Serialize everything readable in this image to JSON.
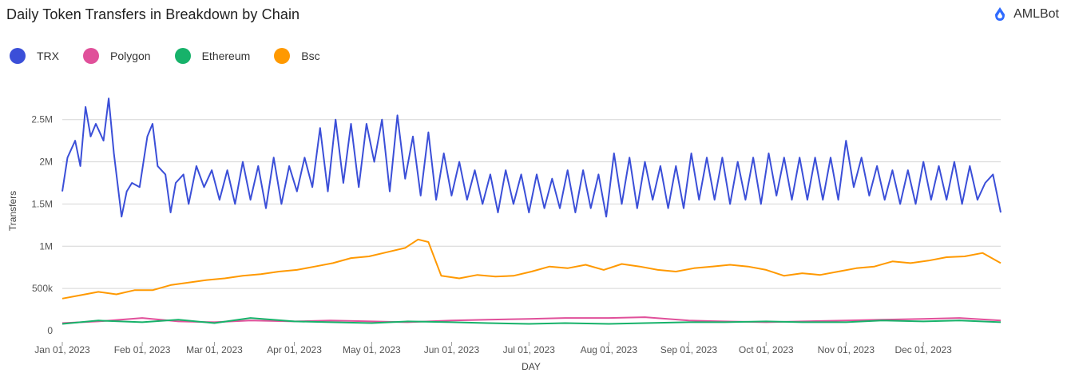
{
  "header": {
    "title": "Daily Token Transfers in Breakdown by Chain",
    "brand": "AMLBot",
    "brand_icon": "amlbot-logo-icon"
  },
  "colors": {
    "TRX": "#3b4fd8",
    "Polygon": "#e0509a",
    "Ethereum": "#17b26a",
    "Bsc": "#ff9900",
    "grid": "#d6d6d6"
  },
  "chart_data": {
    "type": "line",
    "title": "Daily Token Transfers in Breakdown by Chain",
    "xlabel": "DAY",
    "ylabel": "Transfers",
    "ylim": [
      0,
      2800000
    ],
    "yticks": [
      0,
      500000,
      1000000,
      1500000,
      2000000,
      2500000
    ],
    "ytick_labels": [
      "0",
      "500k",
      "1M",
      "1.5M",
      "2M",
      "2.5M"
    ],
    "xlim": [
      "2023-01-01",
      "2023-12-31"
    ],
    "xticks": [
      "2023-01-01",
      "2023-02-01",
      "2023-03-01",
      "2023-04-01",
      "2023-05-01",
      "2023-06-01",
      "2023-07-01",
      "2023-08-01",
      "2023-09-01",
      "2023-10-01",
      "2023-11-01",
      "2023-12-01"
    ],
    "xtick_labels": [
      "Jan 01, 2023",
      "Feb 01, 2023",
      "Mar 01, 2023",
      "Apr 01, 2023",
      "May 01, 2023",
      "Jun 01, 2023",
      "Jul 01, 2023",
      "Aug 01, 2023",
      "Sep 01, 2023",
      "Oct 01, 2023",
      "Nov 01, 2023",
      "Dec 01, 2023"
    ],
    "grid": true,
    "legend_position": "top-left",
    "series": [
      {
        "name": "TRX",
        "x": [
          "2023-01-01",
          "2023-01-03",
          "2023-01-06",
          "2023-01-08",
          "2023-01-10",
          "2023-01-12",
          "2023-01-14",
          "2023-01-17",
          "2023-01-19",
          "2023-01-21",
          "2023-01-24",
          "2023-01-26",
          "2023-01-28",
          "2023-01-31",
          "2023-02-03",
          "2023-02-05",
          "2023-02-07",
          "2023-02-10",
          "2023-02-12",
          "2023-02-14",
          "2023-02-17",
          "2023-02-19",
          "2023-02-22",
          "2023-02-25",
          "2023-02-28",
          "2023-03-03",
          "2023-03-06",
          "2023-03-09",
          "2023-03-12",
          "2023-03-15",
          "2023-03-18",
          "2023-03-21",
          "2023-03-24",
          "2023-03-27",
          "2023-03-30",
          "2023-04-02",
          "2023-04-05",
          "2023-04-08",
          "2023-04-11",
          "2023-04-14",
          "2023-04-17",
          "2023-04-20",
          "2023-04-23",
          "2023-04-26",
          "2023-04-29",
          "2023-05-02",
          "2023-05-05",
          "2023-05-08",
          "2023-05-11",
          "2023-05-14",
          "2023-05-17",
          "2023-05-20",
          "2023-05-23",
          "2023-05-26",
          "2023-05-29",
          "2023-06-01",
          "2023-06-04",
          "2023-06-07",
          "2023-06-10",
          "2023-06-13",
          "2023-06-16",
          "2023-06-19",
          "2023-06-22",
          "2023-06-25",
          "2023-06-28",
          "2023-07-01",
          "2023-07-04",
          "2023-07-07",
          "2023-07-10",
          "2023-07-13",
          "2023-07-16",
          "2023-07-19",
          "2023-07-22",
          "2023-07-25",
          "2023-07-28",
          "2023-07-31",
          "2023-08-03",
          "2023-08-06",
          "2023-08-09",
          "2023-08-12",
          "2023-08-15",
          "2023-08-18",
          "2023-08-21",
          "2023-08-24",
          "2023-08-27",
          "2023-08-30",
          "2023-09-02",
          "2023-09-05",
          "2023-09-08",
          "2023-09-11",
          "2023-09-14",
          "2023-09-17",
          "2023-09-20",
          "2023-09-23",
          "2023-09-26",
          "2023-09-29",
          "2023-10-02",
          "2023-10-05",
          "2023-10-08",
          "2023-10-11",
          "2023-10-14",
          "2023-10-17",
          "2023-10-20",
          "2023-10-23",
          "2023-10-26",
          "2023-10-29",
          "2023-11-01",
          "2023-11-04",
          "2023-11-07",
          "2023-11-10",
          "2023-11-13",
          "2023-11-16",
          "2023-11-19",
          "2023-11-22",
          "2023-11-25",
          "2023-11-28",
          "2023-12-01",
          "2023-12-04",
          "2023-12-07",
          "2023-12-10",
          "2023-12-13",
          "2023-12-16",
          "2023-12-19",
          "2023-12-22",
          "2023-12-25",
          "2023-12-28",
          "2023-12-31"
        ],
        "values": [
          1650000,
          2050000,
          2250000,
          1950000,
          2650000,
          2300000,
          2450000,
          2250000,
          2750000,
          2100000,
          1350000,
          1650000,
          1750000,
          1700000,
          2300000,
          2450000,
          1950000,
          1850000,
          1400000,
          1750000,
          1850000,
          1500000,
          1950000,
          1700000,
          1900000,
          1550000,
          1900000,
          1500000,
          2000000,
          1550000,
          1950000,
          1450000,
          2050000,
          1500000,
          1950000,
          1650000,
          2050000,
          1700000,
          2400000,
          1650000,
          2500000,
          1750000,
          2450000,
          1700000,
          2450000,
          2000000,
          2500000,
          1650000,
          2550000,
          1800000,
          2300000,
          1600000,
          2350000,
          1550000,
          2100000,
          1600000,
          2000000,
          1550000,
          1900000,
          1500000,
          1850000,
          1400000,
          1900000,
          1500000,
          1850000,
          1400000,
          1850000,
          1450000,
          1800000,
          1450000,
          1900000,
          1400000,
          1900000,
          1450000,
          1850000,
          1350000,
          2100000,
          1500000,
          2050000,
          1450000,
          2000000,
          1550000,
          1950000,
          1450000,
          1950000,
          1450000,
          2100000,
          1550000,
          2050000,
          1550000,
          2050000,
          1500000,
          2000000,
          1550000,
          2050000,
          1500000,
          2100000,
          1600000,
          2050000,
          1550000,
          2050000,
          1550000,
          2050000,
          1550000,
          2050000,
          1550000,
          2250000,
          1700000,
          2050000,
          1600000,
          1950000,
          1550000,
          1900000,
          1500000,
          1900000,
          1500000,
          2000000,
          1550000,
          1950000,
          1550000,
          2000000,
          1500000,
          1950000,
          1550000,
          1750000,
          1850000,
          1400000
        ]
      },
      {
        "name": "Polygon",
        "x": [
          "2023-01-01",
          "2023-01-15",
          "2023-02-01",
          "2023-02-15",
          "2023-03-01",
          "2023-03-15",
          "2023-04-01",
          "2023-04-15",
          "2023-05-01",
          "2023-05-15",
          "2023-06-01",
          "2023-06-15",
          "2023-07-01",
          "2023-07-15",
          "2023-08-01",
          "2023-08-15",
          "2023-09-01",
          "2023-09-15",
          "2023-10-01",
          "2023-10-15",
          "2023-11-01",
          "2023-11-15",
          "2023-12-01",
          "2023-12-15",
          "2023-12-31"
        ],
        "values": [
          90000,
          110000,
          150000,
          110000,
          100000,
          120000,
          110000,
          120000,
          110000,
          100000,
          120000,
          130000,
          140000,
          150000,
          150000,
          160000,
          120000,
          110000,
          100000,
          110000,
          120000,
          130000,
          140000,
          150000,
          120000
        ]
      },
      {
        "name": "Ethereum",
        "x": [
          "2023-01-01",
          "2023-01-15",
          "2023-02-01",
          "2023-02-15",
          "2023-03-01",
          "2023-03-15",
          "2023-04-01",
          "2023-04-15",
          "2023-05-01",
          "2023-05-15",
          "2023-06-01",
          "2023-06-15",
          "2023-07-01",
          "2023-07-15",
          "2023-08-01",
          "2023-08-15",
          "2023-09-01",
          "2023-09-15",
          "2023-10-01",
          "2023-10-15",
          "2023-11-01",
          "2023-11-15",
          "2023-12-01",
          "2023-12-15",
          "2023-12-31"
        ],
        "values": [
          80000,
          120000,
          100000,
          130000,
          90000,
          150000,
          110000,
          100000,
          90000,
          110000,
          100000,
          90000,
          80000,
          90000,
          80000,
          90000,
          100000,
          100000,
          110000,
          100000,
          100000,
          120000,
          110000,
          120000,
          100000
        ]
      },
      {
        "name": "Bsc",
        "x": [
          "2023-01-01",
          "2023-01-08",
          "2023-01-15",
          "2023-01-22",
          "2023-01-29",
          "2023-02-05",
          "2023-02-12",
          "2023-02-19",
          "2023-02-26",
          "2023-03-05",
          "2023-03-12",
          "2023-03-19",
          "2023-03-26",
          "2023-04-02",
          "2023-04-09",
          "2023-04-16",
          "2023-04-23",
          "2023-04-30",
          "2023-05-07",
          "2023-05-14",
          "2023-05-19",
          "2023-05-23",
          "2023-05-28",
          "2023-06-04",
          "2023-06-11",
          "2023-06-18",
          "2023-06-25",
          "2023-07-02",
          "2023-07-09",
          "2023-07-16",
          "2023-07-23",
          "2023-07-30",
          "2023-08-06",
          "2023-08-13",
          "2023-08-20",
          "2023-08-27",
          "2023-09-03",
          "2023-09-10",
          "2023-09-17",
          "2023-09-24",
          "2023-10-01",
          "2023-10-08",
          "2023-10-15",
          "2023-10-22",
          "2023-10-29",
          "2023-11-05",
          "2023-11-12",
          "2023-11-19",
          "2023-11-26",
          "2023-12-03",
          "2023-12-10",
          "2023-12-17",
          "2023-12-24",
          "2023-12-31"
        ],
        "values": [
          380000,
          420000,
          460000,
          430000,
          480000,
          480000,
          540000,
          570000,
          600000,
          620000,
          650000,
          670000,
          700000,
          720000,
          760000,
          800000,
          860000,
          880000,
          930000,
          980000,
          1080000,
          1050000,
          650000,
          620000,
          660000,
          640000,
          650000,
          700000,
          760000,
          740000,
          780000,
          720000,
          790000,
          760000,
          720000,
          700000,
          740000,
          760000,
          780000,
          760000,
          720000,
          650000,
          680000,
          660000,
          700000,
          740000,
          760000,
          820000,
          800000,
          830000,
          870000,
          880000,
          920000,
          800000
        ]
      }
    ]
  }
}
